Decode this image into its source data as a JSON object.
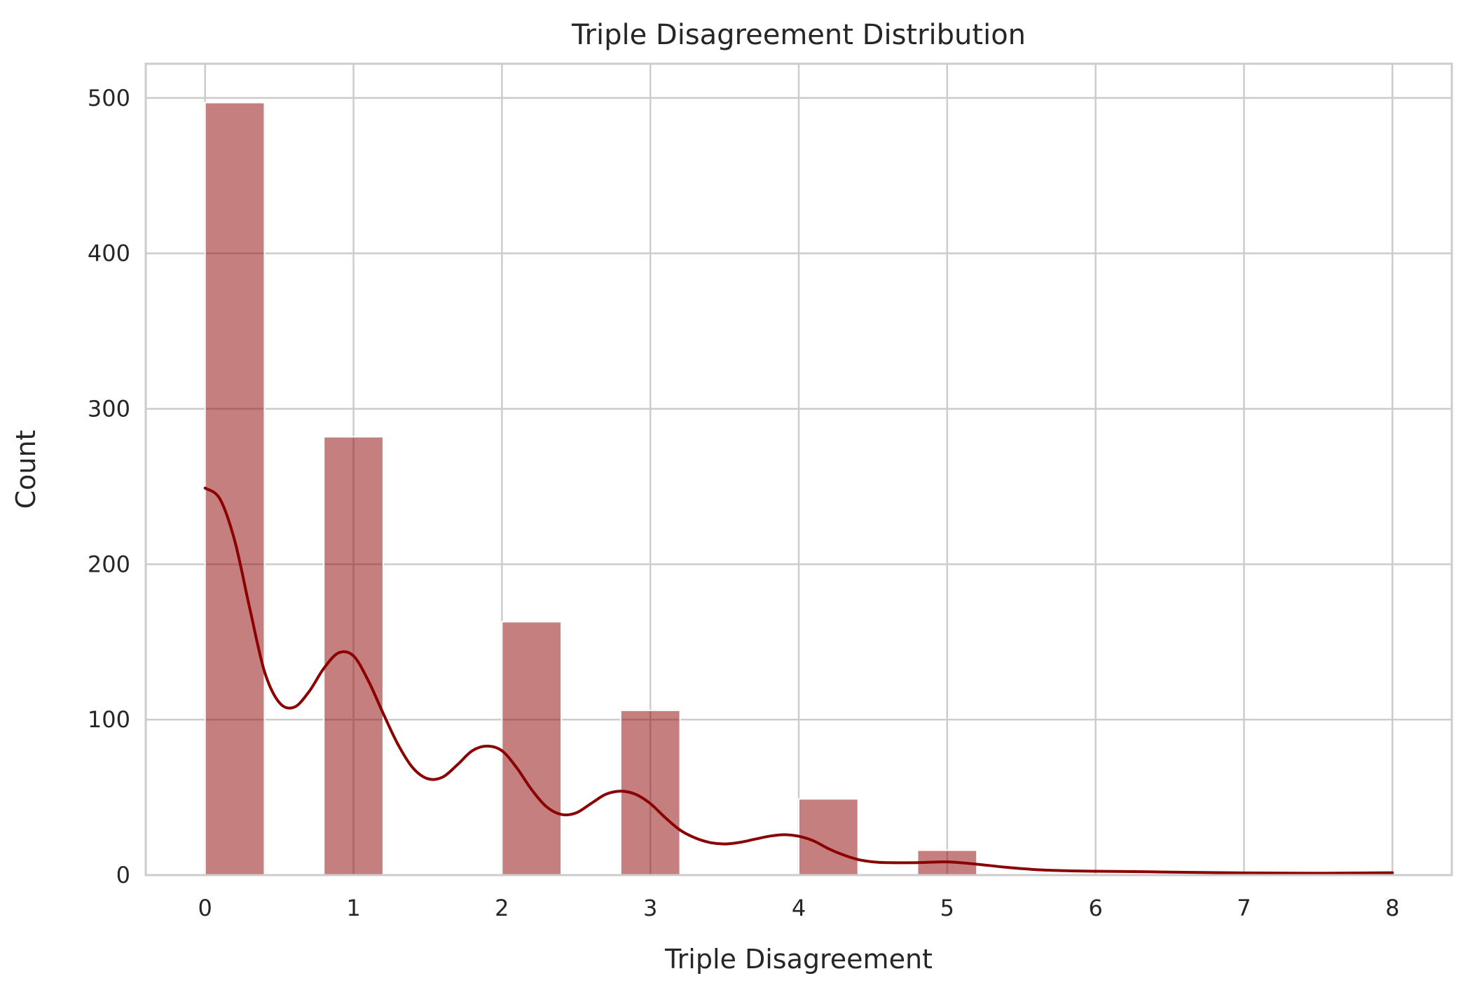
{
  "chart_data": {
    "type": "bar",
    "title": "Triple Disagreement Distribution",
    "xlabel": "Triple Disagreement",
    "ylabel": "Count",
    "xlim": [
      -0.4,
      8.4
    ],
    "ylim": [
      0,
      522
    ],
    "x_ticks": [
      0,
      1,
      2,
      3,
      4,
      5,
      6,
      7,
      8
    ],
    "y_ticks": [
      0,
      100,
      200,
      300,
      400,
      500
    ],
    "grid": true,
    "bar_color": "#8b0000",
    "bar_opacity": 0.5,
    "bins": [
      {
        "x_start": 0.0,
        "x_end": 0.4,
        "count": 497
      },
      {
        "x_start": 0.8,
        "x_end": 1.2,
        "count": 282
      },
      {
        "x_start": 2.0,
        "x_end": 2.4,
        "count": 163
      },
      {
        "x_start": 2.8,
        "x_end": 3.2,
        "count": 106
      },
      {
        "x_start": 4.0,
        "x_end": 4.4,
        "count": 49
      },
      {
        "x_start": 4.8,
        "x_end": 5.2,
        "count": 16
      }
    ],
    "kde": {
      "color": "#8b0000",
      "x": [
        0,
        0.1,
        0.2,
        0.3,
        0.4,
        0.5,
        0.6,
        0.7,
        0.8,
        0.9,
        1.0,
        1.1,
        1.2,
        1.3,
        1.4,
        1.5,
        1.6,
        1.7,
        1.8,
        1.9,
        2.0,
        2.1,
        2.2,
        2.3,
        2.4,
        2.5,
        2.6,
        2.7,
        2.8,
        2.9,
        3.0,
        3.1,
        3.2,
        3.3,
        3.4,
        3.5,
        3.6,
        3.7,
        3.8,
        3.9,
        4.0,
        4.1,
        4.2,
        4.3,
        4.4,
        4.5,
        4.6,
        4.8,
        5.0,
        5.2,
        5.4,
        5.6,
        5.8,
        6.0,
        6.3,
        6.6,
        7.0,
        7.5,
        8.0
      ],
      "y": [
        249,
        242,
        215,
        172,
        131,
        111,
        108,
        118,
        133,
        143,
        141,
        125,
        104,
        84,
        69,
        62,
        63,
        71,
        80,
        83,
        80,
        69,
        55,
        44,
        39,
        40,
        46,
        52,
        54,
        52,
        46,
        37,
        29,
        24,
        21,
        20,
        21,
        23,
        25,
        26,
        25,
        22,
        17,
        13,
        10,
        8.5,
        8,
        8,
        8.5,
        7,
        5,
        3.5,
        2.8,
        2.5,
        2.2,
        1.8,
        1.4,
        1.2,
        1.5
      ]
    }
  }
}
